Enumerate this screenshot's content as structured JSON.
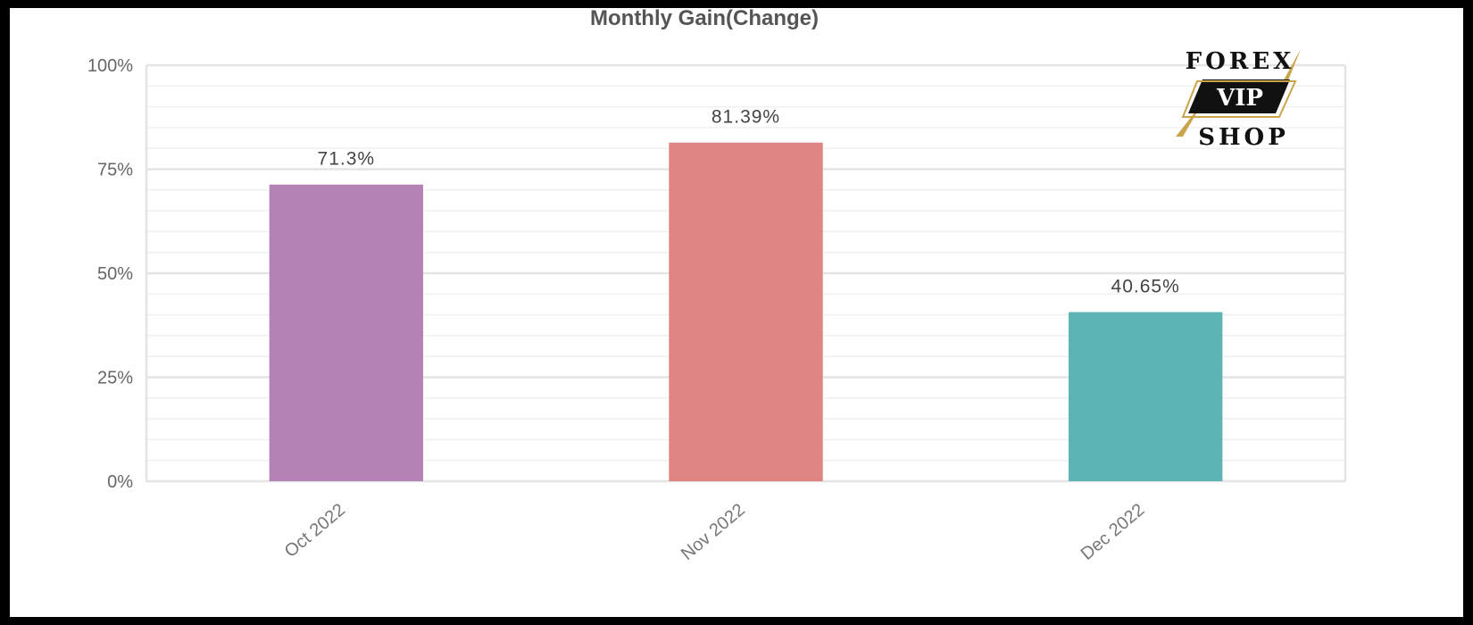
{
  "chart_data": {
    "type": "bar",
    "title": "Monthly Gain(Change)",
    "categories": [
      "Oct 2022",
      "Nov 2022",
      "Dec 2022"
    ],
    "values": [
      71.3,
      81.39,
      40.65
    ],
    "data_labels": [
      "71.3%",
      "81.39%",
      "40.65%"
    ],
    "bar_colors": [
      "#b283b4",
      "#e08482",
      "#5cb4b4"
    ],
    "ylim": [
      0,
      100
    ],
    "y_ticks": [
      0,
      25,
      50,
      75,
      100
    ],
    "y_tick_labels": [
      "0%",
      "25%",
      "50%",
      "75%",
      "100%"
    ],
    "grid": true,
    "legend": "none"
  },
  "logo": {
    "top": "FOREX",
    "middle": "VIP",
    "bottom": "SHOP",
    "gold": "#c9a44a"
  }
}
